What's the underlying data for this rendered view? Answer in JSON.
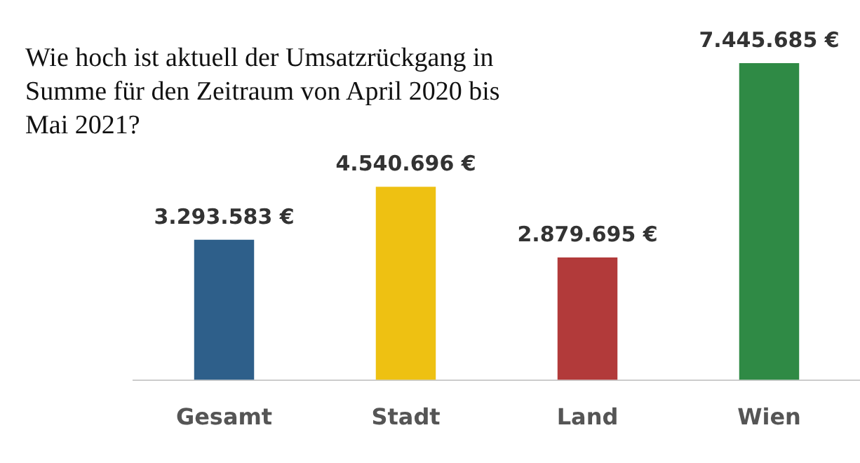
{
  "chart_data": {
    "type": "bar",
    "title": "Wie hoch ist aktuell der Umsatzrückgang in Summe für den Zeitraum von April 2020 bis Mai 2021?",
    "categories": [
      "Gesamt",
      "Stadt",
      "Land",
      "Wien"
    ],
    "values": [
      3293583,
      4540696,
      2879695,
      7445685
    ],
    "colors": [
      "#2e5f8a",
      "#eec112",
      "#b23a3a",
      "#2f8a45"
    ],
    "value_labels": [
      "3.293.583 €",
      "4.540.696 €",
      "2.879.695 €",
      "7.445.685 €"
    ]
  }
}
